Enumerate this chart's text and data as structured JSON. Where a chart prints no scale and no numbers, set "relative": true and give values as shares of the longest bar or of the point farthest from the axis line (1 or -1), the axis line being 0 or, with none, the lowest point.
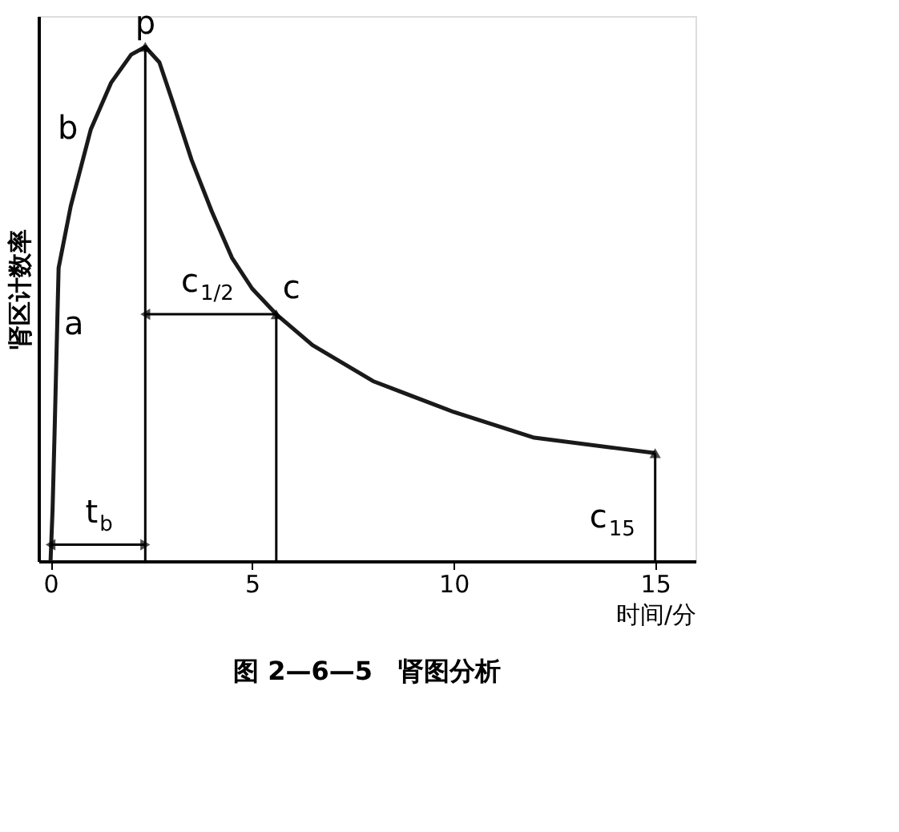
{
  "chart_data": {
    "type": "line",
    "title": "图 2—6—5　肾图分析",
    "xlabel": "时间/分",
    "ylabel": "肾区计数率",
    "relative": true,
    "color": "#1a1a1a",
    "grid": false,
    "marker": "none",
    "line_style": "solid",
    "x": [
      0,
      0.05,
      0.1,
      0.2,
      0.5,
      1.0,
      1.5,
      2.0,
      2.35,
      2.7,
      3.0,
      3.5,
      4.0,
      4.5,
      5.0,
      5.6,
      6.5,
      8,
      10,
      12,
      14,
      15
    ],
    "values": [
      0,
      0.1,
      0.25,
      0.57,
      0.69,
      0.84,
      0.93,
      0.985,
      1.0,
      0.97,
      0.9,
      0.78,
      0.68,
      0.59,
      0.53,
      0.48,
      0.42,
      0.35,
      0.29,
      0.24,
      0.22,
      0.21
    ],
    "xlim": [
      -0.3,
      16
    ],
    "xticks": [
      0,
      5,
      10,
      15
    ],
    "ref_lines": [
      {
        "axis": "x",
        "value": 2.35
      },
      {
        "axis": "x",
        "value": 5.6
      },
      {
        "axis": "x",
        "value": 15
      }
    ],
    "annotations": [
      {
        "text": "p",
        "x": 2.35,
        "y": 1.0
      },
      {
        "text": "b",
        "x": 1.0,
        "y": 0.84
      },
      {
        "text": "a",
        "x": 0.1,
        "y": 0.46
      },
      {
        "text": "c",
        "x": 5.6,
        "y": 0.48
      },
      "c$_{1/2}$",
      "t$_{b}$",
      "c$_{15}$"
    ]
  }
}
